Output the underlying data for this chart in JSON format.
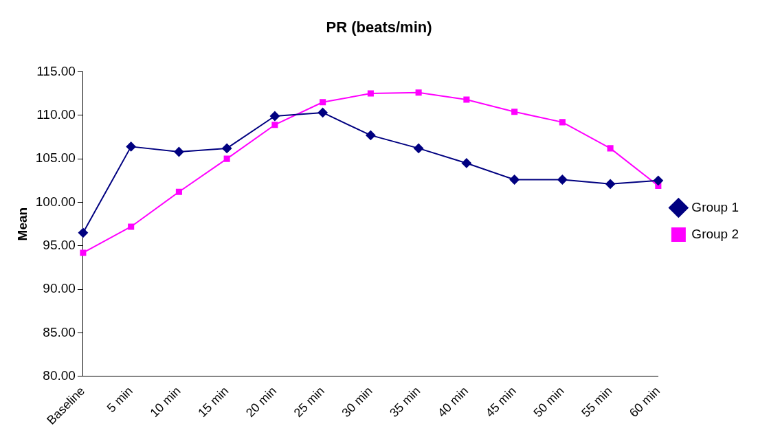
{
  "chart_data": {
    "type": "line",
    "title": "PR (beats/min)",
    "ylabel": "Mean",
    "categories": [
      "Baseline",
      "5 min",
      "10 min",
      "15 min",
      "20 min",
      "25 min",
      "30 min",
      "35 min",
      "40 min",
      "45 min",
      "50 min",
      "55 min",
      "60 min"
    ],
    "series": [
      {
        "name": "Group 1",
        "color": "#000080",
        "marker": "diamond",
        "values": [
          96.5,
          106.4,
          105.8,
          106.2,
          109.9,
          110.3,
          107.7,
          106.2,
          104.5,
          102.6,
          102.6,
          102.1,
          102.5
        ]
      },
      {
        "name": "Group 2",
        "color": "#ff00ff",
        "marker": "square",
        "values": [
          94.2,
          97.2,
          101.2,
          105.0,
          108.9,
          111.5,
          112.5,
          112.6,
          111.8,
          110.4,
          109.2,
          106.2,
          101.9
        ]
      }
    ],
    "ylim": [
      80,
      115
    ],
    "yticks": [
      {
        "value": 80,
        "label": "80.00"
      },
      {
        "value": 85,
        "label": "85.00"
      },
      {
        "value": 90,
        "label": "90.00"
      },
      {
        "value": 95,
        "label": "95.00"
      },
      {
        "value": 100,
        "label": "100.00"
      },
      {
        "value": 105,
        "label": "105.00"
      },
      {
        "value": 110,
        "label": "110.00"
      },
      {
        "value": 115,
        "label": "115.00"
      }
    ],
    "grid": false,
    "legend": "right",
    "line_style": "solid"
  }
}
